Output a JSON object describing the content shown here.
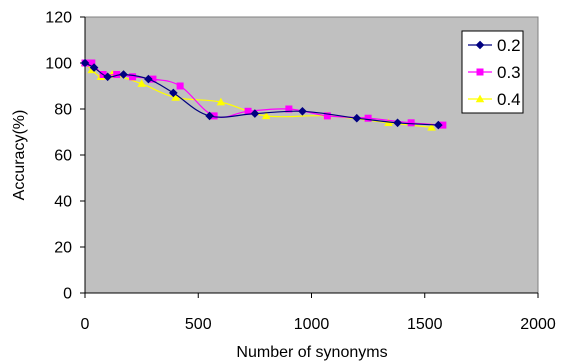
{
  "chart_data": {
    "type": "line",
    "title": "",
    "xlabel": "Number of synonyms",
    "ylabel": "Accuracy(%)",
    "xlim": [
      0,
      2000
    ],
    "ylim": [
      0,
      120
    ],
    "xticks": [
      0,
      500,
      1000,
      1500,
      2000
    ],
    "yticks": [
      0,
      20,
      40,
      60,
      80,
      100,
      120
    ],
    "grid": false,
    "plot_background": "#c0c0c0",
    "legend_position": "top-right",
    "series": [
      {
        "name": "0.2",
        "color": "#000080",
        "marker": "diamond",
        "x": [
          0,
          40,
          100,
          170,
          280,
          390,
          550,
          750,
          960,
          1200,
          1380,
          1560
        ],
        "y": [
          100,
          98,
          94,
          95,
          93,
          87,
          77,
          78,
          79,
          76,
          74,
          73
        ]
      },
      {
        "name": "0.3",
        "color": "#ff00ff",
        "marker": "square",
        "x": [
          0,
          30,
          80,
          140,
          210,
          300,
          420,
          570,
          720,
          900,
          1070,
          1250,
          1440,
          1580
        ],
        "y": [
          100,
          100,
          95,
          95,
          94,
          93,
          90,
          77,
          79,
          80,
          77,
          76,
          74,
          73
        ]
      },
      {
        "name": "0.4",
        "color": "#ffff00",
        "marker": "triangle",
        "x": [
          0,
          30,
          70,
          120,
          250,
          400,
          600,
          800,
          1070,
          1340,
          1530
        ],
        "y": [
          100,
          97,
          94,
          95,
          91,
          85,
          83,
          77,
          77,
          74,
          72
        ]
      }
    ]
  }
}
